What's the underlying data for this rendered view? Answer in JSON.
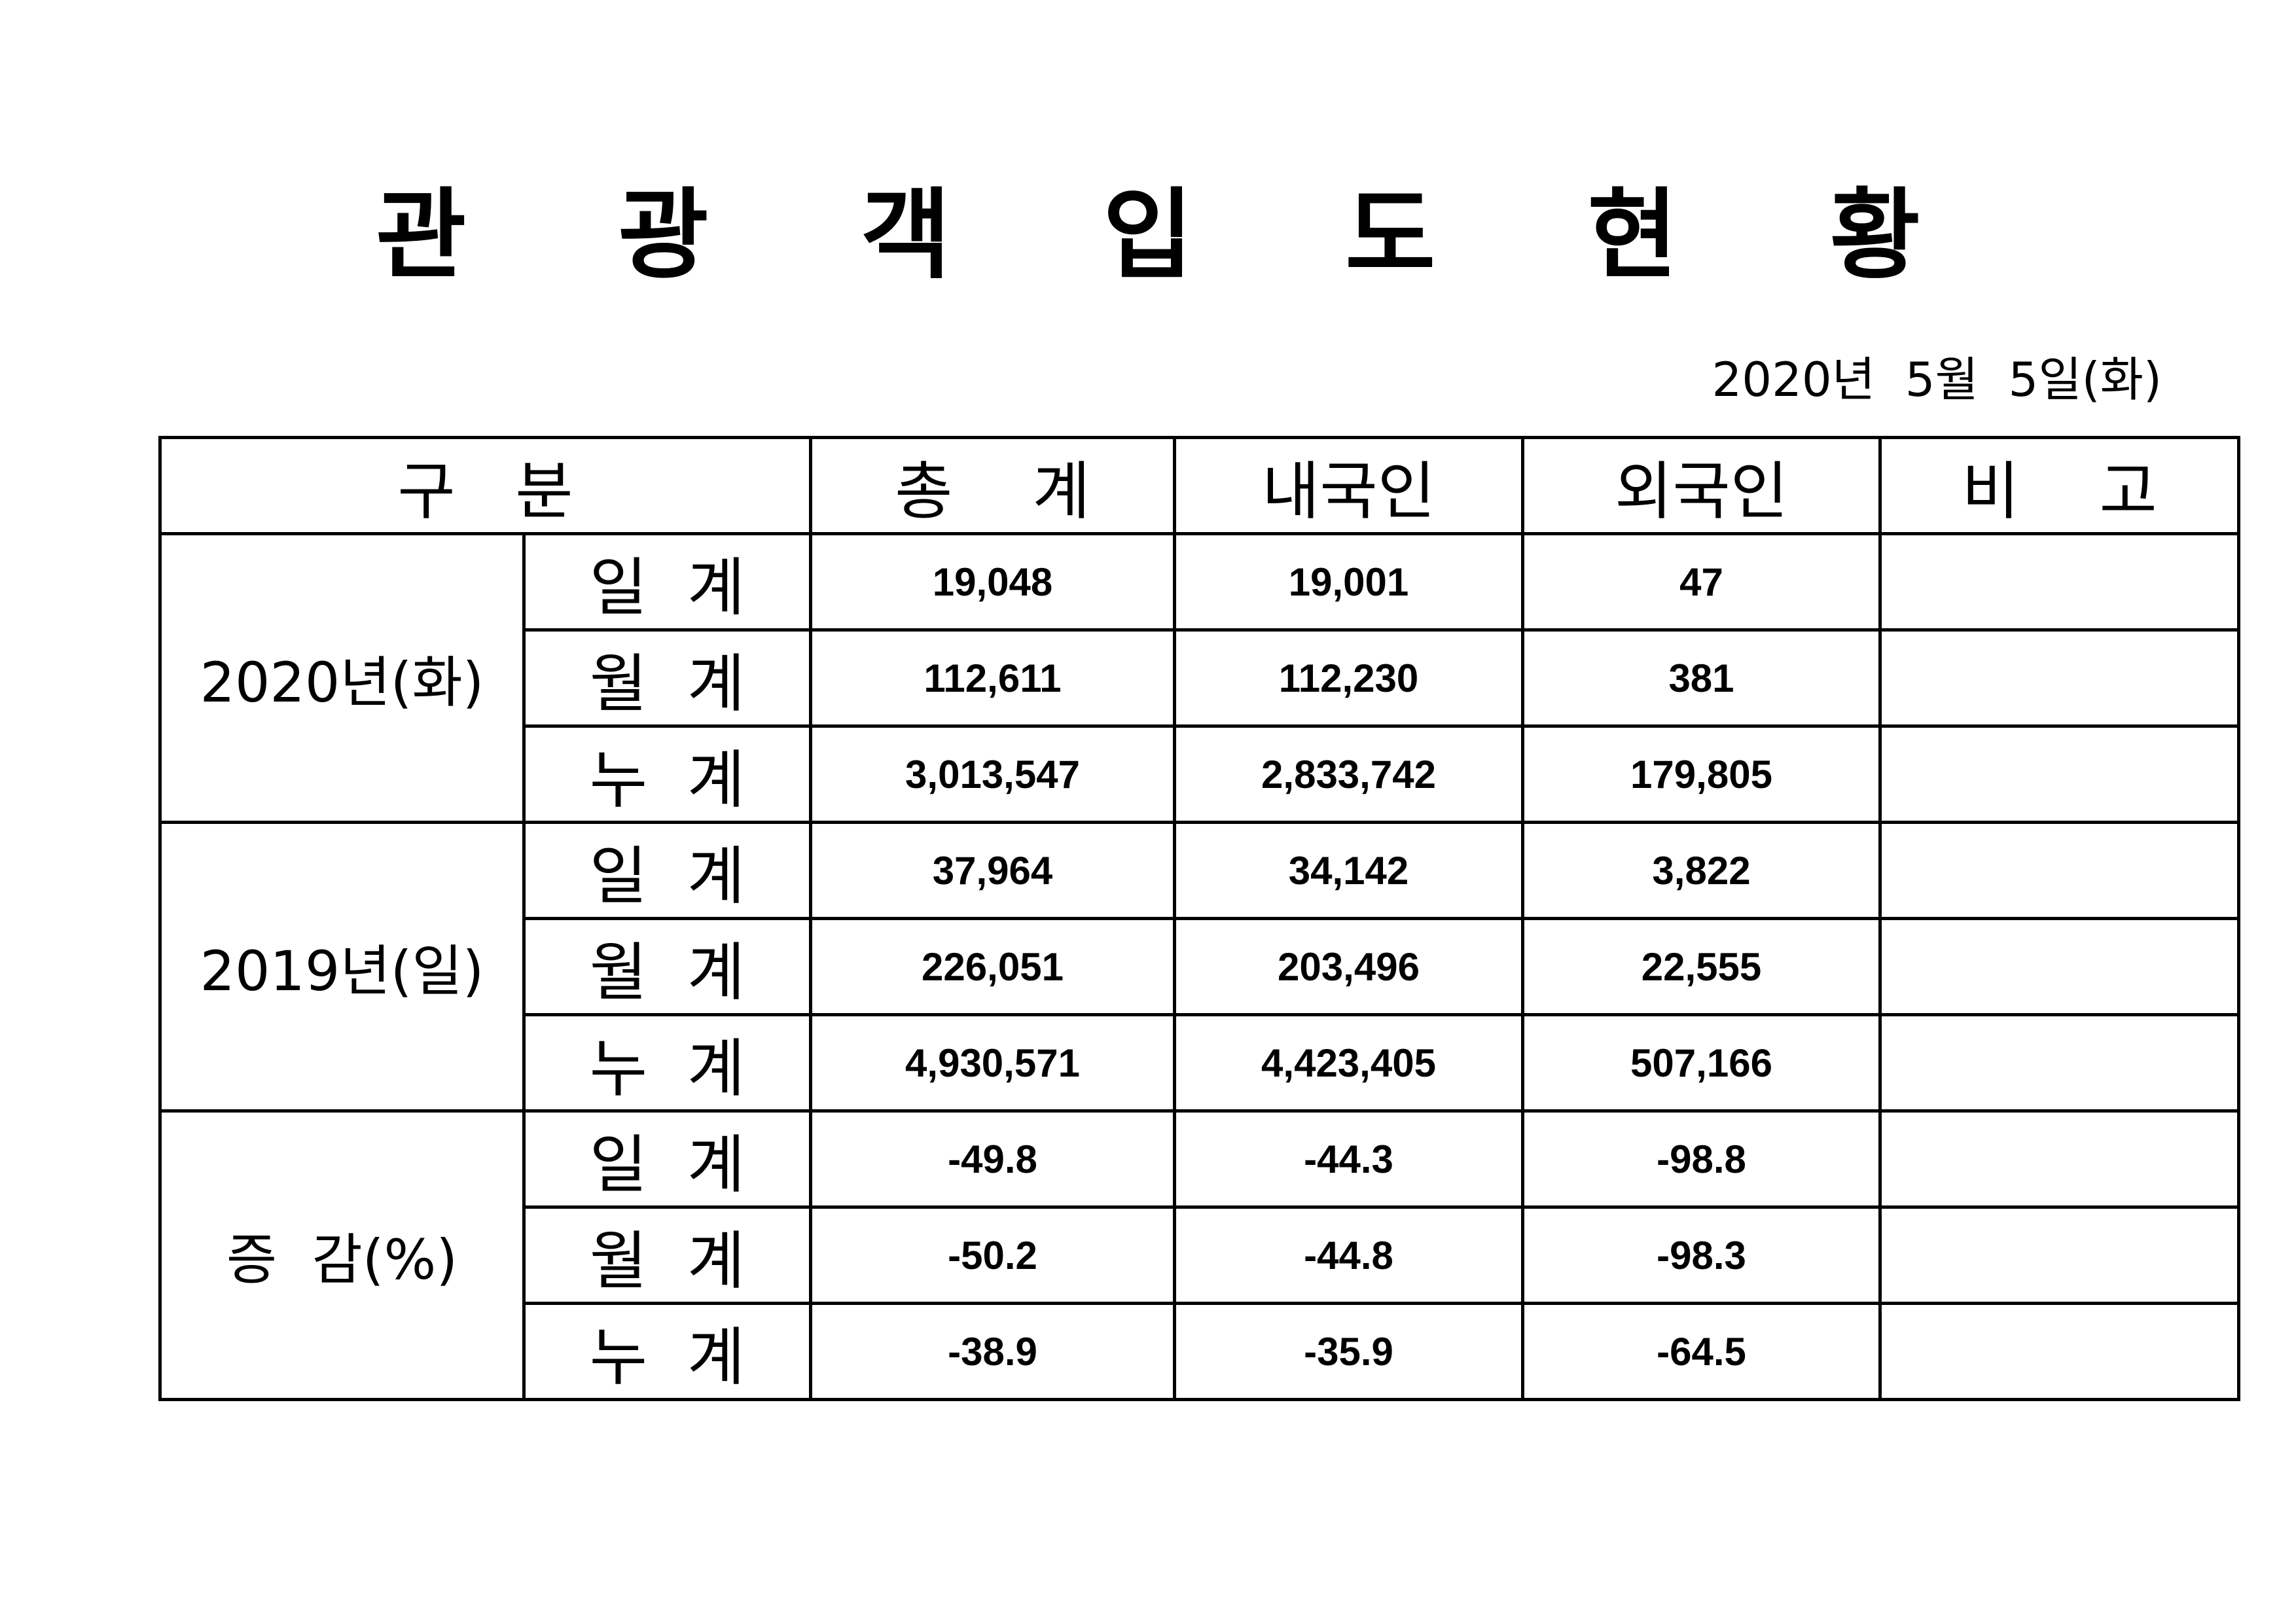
{
  "title": "관 광 객 입 도 현 황",
  "date": "2020년  5월  5일(화)",
  "headers": {
    "category": "구   분",
    "total": "총    계",
    "domestic": "내국인",
    "foreign": "외국인",
    "note": "비    고"
  },
  "groups": [
    {
      "label": "2020년(화)",
      "rows": [
        {
          "label": "일  계",
          "total": "19,048",
          "domestic": "19,001",
          "foreign": "47",
          "note": ""
        },
        {
          "label": "월  계",
          "total": "112,611",
          "domestic": "112,230",
          "foreign": "381",
          "note": ""
        },
        {
          "label": "누  계",
          "total": "3,013,547",
          "domestic": "2,833,742",
          "foreign": "179,805",
          "note": ""
        }
      ]
    },
    {
      "label": "2019년(일)",
      "rows": [
        {
          "label": "일  계",
          "total": "37,964",
          "domestic": "34,142",
          "foreign": "3,822",
          "note": ""
        },
        {
          "label": "월  계",
          "total": "226,051",
          "domestic": "203,496",
          "foreign": "22,555",
          "note": ""
        },
        {
          "label": "누  계",
          "total": "4,930,571",
          "domestic": "4,423,405",
          "foreign": "507,166",
          "note": ""
        }
      ]
    },
    {
      "label": "증  감(%)",
      "rows": [
        {
          "label": "일  계",
          "total": "-49.8",
          "domestic": "-44.3",
          "foreign": "-98.8",
          "note": ""
        },
        {
          "label": "월  계",
          "total": "-50.2",
          "domestic": "-44.8",
          "foreign": "-98.3",
          "note": ""
        },
        {
          "label": "누  계",
          "total": "-38.9",
          "domestic": "-35.9",
          "foreign": "-64.5",
          "note": ""
        }
      ]
    }
  ]
}
